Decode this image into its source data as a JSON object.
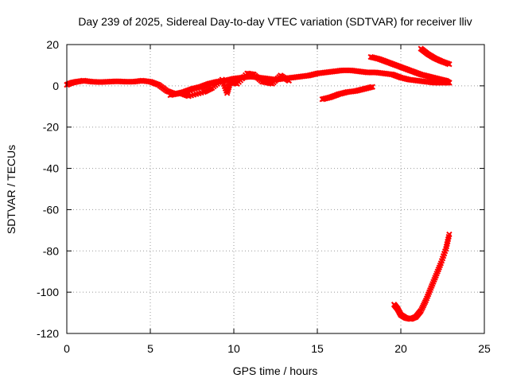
{
  "chart_data": {
    "type": "scatter",
    "title": "Day 239 of 2025, Sidereal Day-to-day VTEC variation (SDTVAR) for receiver lliv",
    "xlabel": "GPS time / hours",
    "ylabel": "SDTVAR / TECUs",
    "xlim": [
      0,
      25
    ],
    "ylim": [
      -120,
      20
    ],
    "xticks": [
      0,
      5,
      10,
      15,
      20,
      25
    ],
    "yticks": [
      -120,
      -100,
      -80,
      -60,
      -40,
      -20,
      0,
      20
    ],
    "grid": true,
    "marker_color": "#ff0000",
    "series": [
      {
        "name": "main-trace",
        "points": [
          [
            0.0,
            0.5
          ],
          [
            0.3,
            1.5
          ],
          [
            0.6,
            2.0
          ],
          [
            1.0,
            2.5
          ],
          [
            1.5,
            2.0
          ],
          [
            2.0,
            1.8
          ],
          [
            2.5,
            2.0
          ],
          [
            3.0,
            2.2
          ],
          [
            3.5,
            2.0
          ],
          [
            4.0,
            2.0
          ],
          [
            4.5,
            2.5
          ],
          [
            5.0,
            2.0
          ],
          [
            5.5,
            0.5
          ],
          [
            6.0,
            -2.5
          ],
          [
            6.5,
            -4.0
          ],
          [
            7.0,
            -3.0
          ],
          [
            7.5,
            -1.5
          ],
          [
            8.0,
            -0.5
          ],
          [
            8.5,
            1.0
          ],
          [
            9.0,
            2.0
          ],
          [
            9.5,
            2.5
          ],
          [
            10.0,
            3.5
          ],
          [
            10.5,
            4.0
          ],
          [
            11.0,
            4.5
          ],
          [
            11.5,
            4.0
          ],
          [
            12.0,
            3.5
          ],
          [
            12.5,
            3.0
          ],
          [
            13.0,
            3.5
          ],
          [
            13.5,
            4.0
          ],
          [
            14.0,
            4.5
          ],
          [
            14.5,
            5.0
          ],
          [
            15.0,
            6.0
          ],
          [
            15.5,
            6.5
          ],
          [
            16.0,
            7.0
          ],
          [
            16.5,
            7.5
          ],
          [
            17.0,
            7.5
          ],
          [
            17.5,
            7.0
          ],
          [
            18.0,
            6.5
          ],
          [
            18.5,
            6.5
          ],
          [
            19.0,
            6.0
          ],
          [
            19.5,
            5.5
          ],
          [
            20.0,
            4.0
          ],
          [
            20.5,
            3.0
          ],
          [
            21.0,
            2.5
          ],
          [
            21.5,
            2.0
          ],
          [
            22.0,
            1.5
          ],
          [
            22.5,
            1.5
          ],
          [
            22.9,
            1.5
          ]
        ]
      },
      {
        "name": "scatter-burst",
        "points": [
          [
            6.2,
            -4.5
          ],
          [
            6.8,
            -3.5
          ],
          [
            7.3,
            -5.0
          ],
          [
            8.2,
            -3.0
          ],
          [
            8.7,
            -1.0
          ],
          [
            9.3,
            3.0
          ],
          [
            9.6,
            -3.5
          ],
          [
            9.8,
            2.0
          ],
          [
            10.2,
            1.0
          ],
          [
            10.8,
            6.0
          ],
          [
            11.2,
            5.5
          ],
          [
            11.7,
            2.0
          ],
          [
            12.3,
            1.0
          ],
          [
            12.8,
            5.0
          ],
          [
            13.3,
            2.5
          ]
        ]
      },
      {
        "name": "negative-arc",
        "points": [
          [
            15.3,
            -6.5
          ],
          [
            15.8,
            -5.5
          ],
          [
            16.3,
            -4.0
          ],
          [
            16.8,
            -3.0
          ],
          [
            17.3,
            -2.5
          ],
          [
            17.8,
            -1.5
          ],
          [
            18.3,
            -0.5
          ]
        ]
      },
      {
        "name": "descending-a",
        "points": [
          [
            18.2,
            14.0
          ],
          [
            18.7,
            13.0
          ],
          [
            19.2,
            11.5
          ],
          [
            19.7,
            10.0
          ],
          [
            20.2,
            8.5
          ],
          [
            20.7,
            7.0
          ],
          [
            21.2,
            5.5
          ],
          [
            21.7,
            4.5
          ],
          [
            22.2,
            3.5
          ],
          [
            22.7,
            2.5
          ],
          [
            22.9,
            1.5
          ]
        ]
      },
      {
        "name": "descending-b",
        "points": [
          [
            21.2,
            18.0
          ],
          [
            21.6,
            15.5
          ],
          [
            22.0,
            13.5
          ],
          [
            22.4,
            12.0
          ],
          [
            22.9,
            10.5
          ]
        ]
      },
      {
        "name": "deep-dip",
        "points": [
          [
            19.6,
            -106
          ],
          [
            19.8,
            -108
          ],
          [
            20.0,
            -111
          ],
          [
            20.3,
            -112.5
          ],
          [
            20.6,
            -113
          ],
          [
            20.9,
            -112
          ],
          [
            21.2,
            -109
          ],
          [
            21.5,
            -104
          ],
          [
            21.8,
            -98
          ],
          [
            22.1,
            -92
          ],
          [
            22.4,
            -86
          ],
          [
            22.7,
            -79
          ],
          [
            22.9,
            -72
          ]
        ]
      }
    ]
  }
}
